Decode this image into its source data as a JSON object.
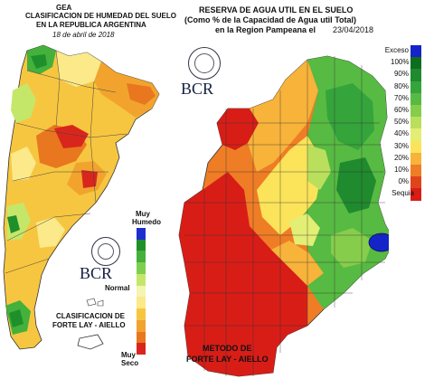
{
  "left": {
    "org": "GEA",
    "title_line1": "CLASIFICACION DE HUMEDAD DEL SUELO",
    "title_line2": "EN LA REPUBLICA ARGENTINA",
    "date": "18 de abril de 2018",
    "legend_top_line1": "Muy",
    "legend_top_line2": "Humedo",
    "legend_mid": "Normal",
    "legend_bottom_line1": "Muy",
    "legend_bottom_line2": "Seco",
    "logo_text": "BCR",
    "footer_line1": "CLASIFICACION DE",
    "footer_line2": "FORTE LAY - AIELLO",
    "legend_colors": [
      "#1d2ecf",
      "#1f8f2b",
      "#43b13b",
      "#7fcf4e",
      "#c4e76a",
      "#f4f4b4",
      "#fbe98a",
      "#f7c640",
      "#f2a32e",
      "#e8771f",
      "#d9261d"
    ]
  },
  "right": {
    "title_line1": "RESERVA DE AGUA UTIL EN EL SUELO",
    "title_line2": "(Como % de la Capacidad de  Agua util Total)",
    "title_line3_prefix": "en la Region Pampeana el",
    "title_date": "23/04/2018",
    "logo_text": "BCR",
    "footer_line1": "METODO DE",
    "footer_line2": "FORTE LAY - AIELLO",
    "legend": [
      {
        "label": "Exceso",
        "color": "#1424c8"
      },
      {
        "label": "100%",
        "color": "#0e6d1f"
      },
      {
        "label": "90%",
        "color": "#1f8a2e"
      },
      {
        "label": "80%",
        "color": "#34a43b"
      },
      {
        "label": "70%",
        "color": "#57ba42"
      },
      {
        "label": "60%",
        "color": "#86cd4c"
      },
      {
        "label": "50%",
        "color": "#b9df5c"
      },
      {
        "label": "40%",
        "color": "#e3ee74"
      },
      {
        "label": "30%",
        "color": "#fbe35a"
      },
      {
        "label": "20%",
        "color": "#f7b33a"
      },
      {
        "label": "10%",
        "color": "#ef7d25"
      },
      {
        "label": "0%",
        "color": "#e0441c"
      },
      {
        "label": "Sequia",
        "color": "#d81d17"
      }
    ]
  }
}
